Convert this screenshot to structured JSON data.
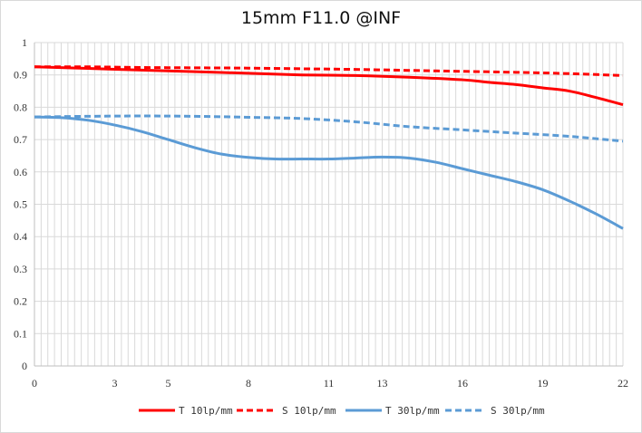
{
  "chart_data": {
    "type": "line",
    "title": "15mm F11.0 @INF",
    "xlabel": "",
    "ylabel": "",
    "xlim": [
      0,
      22
    ],
    "ylim": [
      0,
      1
    ],
    "x_ticks": [
      "0",
      "3",
      "5",
      "8",
      "11",
      "13",
      "16",
      "19",
      "22"
    ],
    "y_ticks": [
      "0",
      "0.1",
      "0.2",
      "0.3",
      "0.4",
      "0.5",
      "0.6",
      "0.7",
      "0.8",
      "0.9",
      "1"
    ],
    "grid": true,
    "legend_position": "bottom",
    "series": [
      {
        "name": "T 10lp/mm",
        "color": "#ff0000",
        "dash": "solid",
        "x": [
          0,
          2,
          4,
          6,
          8,
          10,
          12,
          14,
          16,
          17,
          18,
          19,
          20,
          21,
          22
        ],
        "y": [
          0.925,
          0.92,
          0.915,
          0.91,
          0.905,
          0.9,
          0.898,
          0.893,
          0.885,
          0.877,
          0.87,
          0.86,
          0.85,
          0.83,
          0.808
        ]
      },
      {
        "name": "S 10lp/mm",
        "color": "#ff0000",
        "dash": "dashed",
        "x": [
          0,
          2,
          4,
          6,
          8,
          10,
          12,
          14,
          16,
          18,
          20,
          22
        ],
        "y": [
          0.925,
          0.925,
          0.923,
          0.922,
          0.921,
          0.919,
          0.917,
          0.914,
          0.911,
          0.908,
          0.904,
          0.898
        ]
      },
      {
        "name": "T 30lp/mm",
        "color": "#5b9bd5",
        "dash": "solid",
        "x": [
          0,
          1,
          2,
          3,
          4,
          5,
          6,
          7,
          8,
          9,
          10,
          11,
          12,
          13,
          14,
          15,
          16,
          17,
          18,
          19,
          20,
          21,
          22
        ],
        "y": [
          0.77,
          0.768,
          0.76,
          0.745,
          0.725,
          0.7,
          0.675,
          0.655,
          0.645,
          0.64,
          0.64,
          0.64,
          0.643,
          0.646,
          0.643,
          0.63,
          0.61,
          0.59,
          0.57,
          0.545,
          0.51,
          0.47,
          0.425
        ]
      },
      {
        "name": "S 30lp/mm",
        "color": "#5b9bd5",
        "dash": "dashed",
        "x": [
          0,
          2,
          4,
          6,
          8,
          10,
          12,
          14,
          16,
          18,
          20,
          22
        ],
        "y": [
          0.77,
          0.772,
          0.773,
          0.772,
          0.769,
          0.765,
          0.755,
          0.74,
          0.73,
          0.72,
          0.71,
          0.695
        ]
      }
    ]
  }
}
